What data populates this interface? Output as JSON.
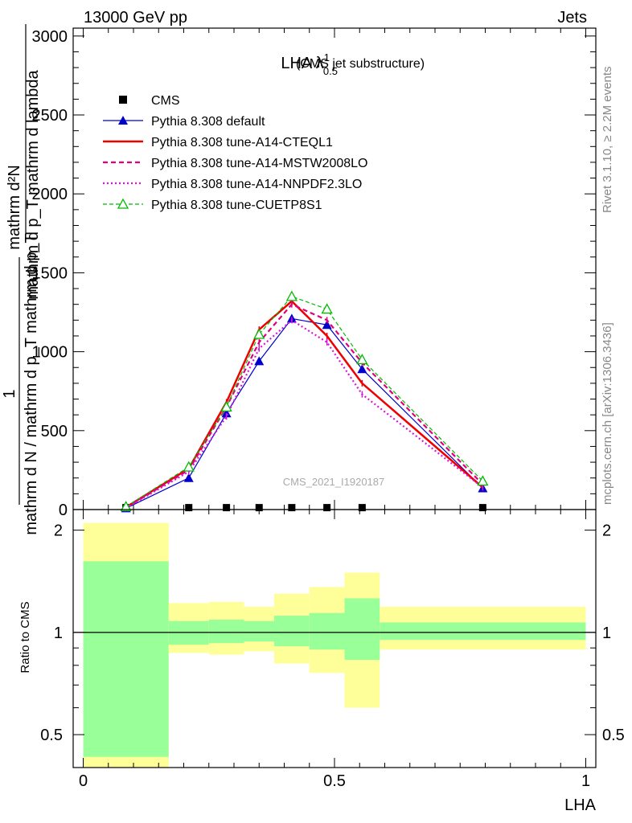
{
  "header": {
    "left": "13000 GeV pp",
    "right": "Jets"
  },
  "side": {
    "rivet": "Rivet 3.1.10, ≥ 2.2M events",
    "mcplots": "mcplots.cern.ch [arXiv:1306.3436]"
  },
  "watermark": "CMS_2021_I1920187",
  "title": {
    "main": "LHA λ",
    "sup": "1",
    "sub": "0.5",
    "suffix": "(CMS jet substructure)"
  },
  "colors": {
    "cms": "#000000",
    "default": "#0000cc",
    "a14cteq": "#ee0000",
    "a14mstw": "#e0007f",
    "a14nnpdf": "#dd11dd",
    "cuetp": "#00bb00",
    "band_inner": "#99ff99",
    "band_outer": "#ffff99"
  },
  "chart_data": [
    {
      "type": "line",
      "ylabel_line1": "mathrm d²N",
      "ylabel_line2": "mathrm d p_T mathrm d lambda",
      "ylabel_line3": "1",
      "ylabel_line4": "mathrm d N / mathrm d p_T mathrm d p_T",
      "ylim": [
        0,
        3050
      ],
      "yticks": [
        0,
        500,
        1000,
        1500,
        2000,
        2500,
        3000
      ],
      "ytick_labels": [
        "0",
        "500",
        "1000",
        "1500",
        "2000",
        "2500",
        "3000"
      ],
      "xlim": [
        -0.02,
        1.02
      ],
      "x": [
        0.085,
        0.21,
        0.285,
        0.35,
        0.415,
        0.485,
        0.555,
        0.795
      ],
      "series": [
        {
          "name": "CMS",
          "key": "cms",
          "marker": "square",
          "values": [
            2,
            2,
            2,
            2,
            2,
            2,
            2,
            2
          ]
        },
        {
          "name": "Pythia 8.308 default",
          "key": "default",
          "marker": "triangle",
          "dash": "",
          "width": 1.2,
          "values": [
            8,
            200,
            610,
            940,
            1210,
            1170,
            890,
            135
          ]
        },
        {
          "name": "Pythia 8.308 tune-A14-CTEQL1",
          "key": "a14cteq",
          "marker": "none",
          "dash": "",
          "width": 2.5,
          "values": [
            15,
            260,
            680,
            1140,
            1320,
            1100,
            800,
            140
          ]
        },
        {
          "name": "Pythia 8.308 tune-A14-MSTW2008LO",
          "key": "a14mstw",
          "marker": "none",
          "dash": "6,4",
          "width": 2.2,
          "values": [
            12,
            250,
            650,
            1060,
            1300,
            1200,
            930,
            160
          ]
        },
        {
          "name": "Pythia 8.308 tune-A14-NNPDF2.3LO",
          "key": "a14nnpdf",
          "marker": "none",
          "dash": "2,3",
          "width": 2.2,
          "values": [
            10,
            240,
            590,
            1020,
            1200,
            1060,
            730,
            140
          ]
        },
        {
          "name": "Pythia 8.308 tune-CUETP8S1",
          "key": "cuetp",
          "marker": "opentriangle",
          "dash": "5,3",
          "width": 1.2,
          "values": [
            18,
            270,
            650,
            1110,
            1350,
            1270,
            950,
            180
          ]
        }
      ]
    },
    {
      "type": "area",
      "ylabel": "Ratio to CMS",
      "xlabel": "LHA",
      "ylim": [
        0.4,
        2.3
      ],
      "log_y": true,
      "yticks": [
        0.5,
        1,
        2
      ],
      "ytick_labels": [
        "0.5",
        "1",
        "2"
      ],
      "xticks": [
        0,
        0.5,
        1
      ],
      "xtick_labels": [
        "0",
        "0.5",
        "1"
      ],
      "bin_edges": [
        0,
        0.17,
        0.25,
        0.32,
        0.38,
        0.45,
        0.52,
        0.59,
        1.0
      ],
      "inner_low": [
        0.43,
        0.92,
        0.93,
        0.94,
        0.91,
        0.89,
        0.83,
        0.95
      ],
      "inner_high": [
        1.62,
        1.08,
        1.09,
        1.08,
        1.12,
        1.14,
        1.26,
        1.07
      ],
      "outer_low": [
        0.2,
        0.87,
        0.86,
        0.88,
        0.81,
        0.76,
        0.6,
        0.89
      ],
      "outer_high": [
        2.1,
        1.22,
        1.23,
        1.19,
        1.3,
        1.36,
        1.5,
        1.19
      ],
      "reference": 1
    }
  ]
}
